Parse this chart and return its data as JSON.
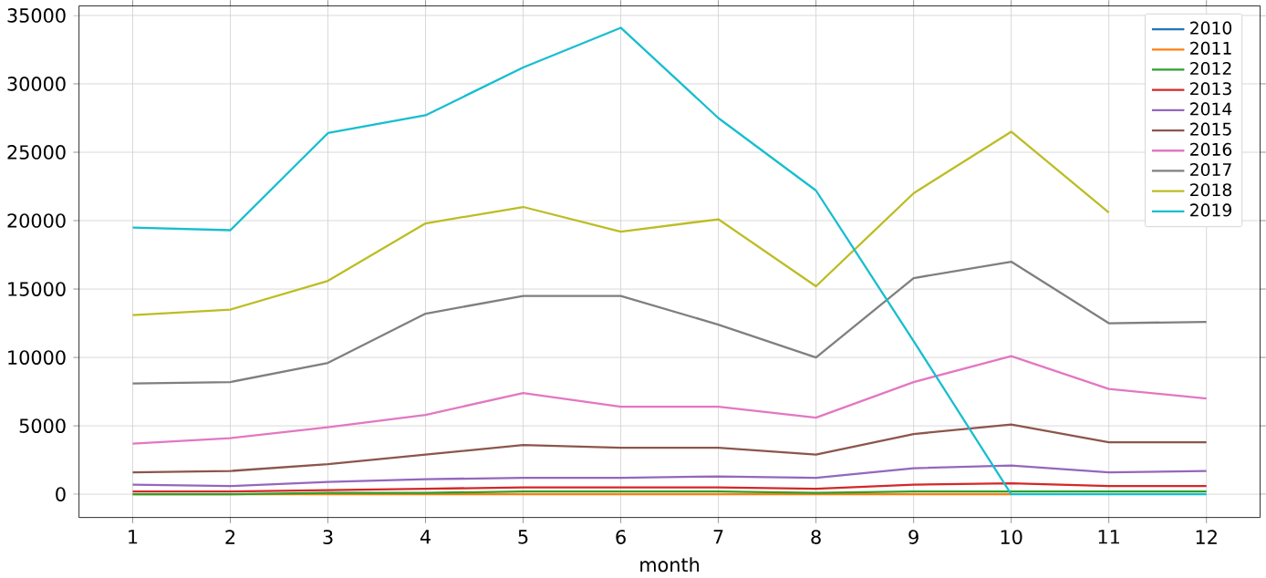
{
  "chart_data": {
    "type": "line",
    "xlabel": "month",
    "x": [
      1,
      2,
      3,
      4,
      5,
      6,
      7,
      8,
      9,
      10,
      11,
      12
    ],
    "xlim": [
      0.45,
      12.55
    ],
    "xticks": [
      1,
      2,
      3,
      4,
      5,
      6,
      7,
      8,
      9,
      10,
      11,
      12
    ],
    "ylim": [
      -1700,
      35700
    ],
    "yticks": [
      0,
      5000,
      10000,
      15000,
      20000,
      25000,
      30000,
      35000
    ],
    "grid": true,
    "legend": "top right",
    "marker": "none",
    "line_style": "solid",
    "series": [
      {
        "name": "2010",
        "color": "#1f77b4",
        "values": [
          null,
          null,
          null,
          null,
          null,
          null,
          null,
          null,
          null,
          null,
          null,
          null
        ]
      },
      {
        "name": "2011",
        "color": "#ff7f0e",
        "values": [
          0,
          0,
          0,
          0,
          0,
          0,
          0,
          0,
          0,
          0,
          null,
          null
        ]
      },
      {
        "name": "2012",
        "color": "#2ca02c",
        "values": [
          0,
          0,
          100,
          100,
          200,
          200,
          200,
          100,
          200,
          200,
          200,
          200
        ]
      },
      {
        "name": "2013",
        "color": "#d62728",
        "values": [
          200,
          200,
          300,
          400,
          500,
          500,
          500,
          400,
          700,
          800,
          600,
          600
        ]
      },
      {
        "name": "2014",
        "color": "#9467bd",
        "values": [
          700,
          600,
          900,
          1100,
          1200,
          1200,
          1300,
          1200,
          1900,
          2100,
          1600,
          1700
        ]
      },
      {
        "name": "2015",
        "color": "#8c564b",
        "values": [
          1600,
          1700,
          2200,
          2900,
          3600,
          3400,
          3400,
          2900,
          4400,
          5100,
          3800,
          3800
        ]
      },
      {
        "name": "2016",
        "color": "#e377c2",
        "values": [
          3700,
          4100,
          4900,
          5800,
          7400,
          6400,
          6400,
          5600,
          8200,
          10100,
          7700,
          7000
        ]
      },
      {
        "name": "2017",
        "color": "#7f7f7f",
        "values": [
          8100,
          8200,
          9600,
          13200,
          14500,
          14500,
          12400,
          10000,
          15800,
          17000,
          12500,
          12600
        ]
      },
      {
        "name": "2018",
        "color": "#bcbd22",
        "values": [
          13100,
          13500,
          15600,
          19800,
          21000,
          19200,
          20100,
          15200,
          22000,
          26500,
          20600,
          null
        ]
      },
      {
        "name": "2019",
        "color": "#17becf",
        "values": [
          19500,
          19300,
          26400,
          27700,
          31200,
          34100,
          27500,
          22200,
          11200,
          0,
          0,
          0
        ]
      }
    ]
  }
}
